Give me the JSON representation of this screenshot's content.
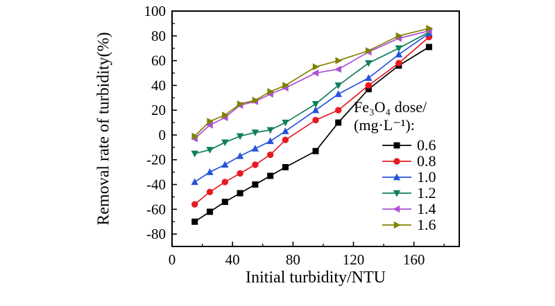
{
  "chart_data": {
    "type": "line",
    "title": "",
    "xlabel": "Initial turbidity/NTU",
    "ylabel": "Removal rate of turbidity(%)",
    "xlim": [
      0,
      190
    ],
    "ylim": [
      -90,
      100
    ],
    "x_ticks": [
      0,
      40,
      80,
      120,
      160
    ],
    "x_minor_step": 20,
    "y_ticks": [
      -80,
      -60,
      -40,
      -20,
      0,
      20,
      40,
      60,
      80,
      100
    ],
    "y_minor_step": 10,
    "grid": false,
    "legend_position": "inside-right",
    "legend_title": [
      "Fe₃O₄ dose/",
      "(mg·L⁻¹):"
    ],
    "x": [
      15,
      25,
      35,
      45,
      55,
      65,
      75,
      95,
      110,
      130,
      150,
      170
    ],
    "series": [
      {
        "name": "0.6",
        "color": "#000000",
        "marker": "square",
        "values": [
          -70,
          -62,
          -54,
          -47,
          -40,
          -33,
          -26,
          -13,
          10,
          37,
          56,
          71
        ]
      },
      {
        "name": "0.8",
        "color": "#e61a23",
        "marker": "circle",
        "values": [
          -56,
          -46,
          -38,
          -31,
          -24,
          -16,
          -4,
          12,
          20,
          40,
          58,
          79
        ]
      },
      {
        "name": "1.0",
        "color": "#2453db",
        "marker": "triangle-up",
        "values": [
          -38,
          -30,
          -24,
          -17,
          -11,
          -5,
          3,
          20,
          33,
          46,
          65,
          82
        ]
      },
      {
        "name": "1.2",
        "color": "#0f7f5f",
        "marker": "triangle-down",
        "values": [
          -15,
          -12,
          -6,
          -1,
          2,
          4,
          10,
          25,
          40,
          58,
          70,
          83
        ]
      },
      {
        "name": "1.4",
        "color": "#ae4fd5",
        "marker": "triangle-left",
        "values": [
          -3,
          8,
          14,
          24,
          27,
          33,
          38,
          50,
          53,
          67,
          78,
          84
        ]
      },
      {
        "name": "1.6",
        "color": "#808300",
        "marker": "triangle-right",
        "values": [
          -1,
          11,
          16,
          25,
          28,
          35,
          40,
          55,
          60,
          68,
          80,
          86
        ]
      }
    ]
  }
}
